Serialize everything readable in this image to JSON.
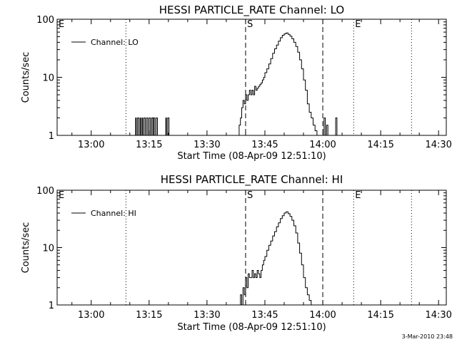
{
  "footer": {
    "timestamp": "3-Mar-2010 23:48"
  },
  "chart_data": [
    {
      "type": "line",
      "title": "HESSI PARTICLE_RATE Channel: LO",
      "xlabel": "Start Time (08-Apr-09 12:51:10)",
      "ylabel": "Counts/sec",
      "yscale": "log",
      "xlim": [
        "12:51:10",
        "14:32:00"
      ],
      "ylim": [
        1,
        100
      ],
      "xticks": [
        "13:00",
        "13:15",
        "13:30",
        "13:45",
        "14:00",
        "14:15",
        "14:30"
      ],
      "yticks": [
        "1",
        "10",
        "100"
      ],
      "legend": {
        "position": "top-left",
        "entries": [
          "Channel: LO"
        ]
      },
      "markers": [
        {
          "label": "E",
          "time": "12:51:10",
          "style": "dotted"
        },
        {
          "label": "",
          "time": "13:09:00",
          "style": "dotted"
        },
        {
          "label": "S",
          "time": "13:40:00",
          "style": "dashed"
        },
        {
          "label": "",
          "time": "14:00:00",
          "style": "dashed"
        },
        {
          "label": "E",
          "time": "14:08:00",
          "style": "dotted"
        },
        {
          "label": "",
          "time": "14:23:00",
          "style": "dotted"
        }
      ],
      "series": [
        {
          "name": "Channel: LO",
          "x": [
            "12:51:10",
            "13:11:00",
            "13:11:30",
            "13:11:40",
            "13:12:00",
            "13:12:20",
            "13:12:40",
            "13:12:50",
            "13:13:10",
            "13:13:20",
            "13:13:40",
            "13:14:00",
            "13:14:20",
            "13:14:40",
            "13:15:00",
            "13:15:20",
            "13:15:40",
            "13:16:00",
            "13:16:10",
            "13:16:30",
            "13:16:50",
            "13:17:10",
            "13:17:20",
            "13:19:00",
            "13:19:20",
            "13:19:30",
            "13:19:50",
            "13:20:10",
            "13:38:00",
            "13:38:20",
            "13:38:40",
            "13:39:00",
            "13:39:20",
            "13:39:40",
            "13:40:00",
            "13:40:20",
            "13:40:40",
            "13:41:00",
            "13:41:20",
            "13:41:40",
            "13:42:00",
            "13:42:20",
            "13:42:40",
            "13:43:00",
            "13:43:20",
            "13:43:40",
            "13:44:00",
            "13:44:20",
            "13:44:40",
            "13:45:00",
            "13:45:30",
            "13:46:00",
            "13:46:30",
            "13:47:00",
            "13:47:30",
            "13:48:00",
            "13:48:30",
            "13:49:00",
            "13:49:30",
            "13:50:00",
            "13:50:30",
            "13:51:00",
            "13:51:30",
            "13:52:00",
            "13:52:30",
            "13:53:00",
            "13:53:30",
            "13:54:00",
            "13:54:30",
            "13:55:00",
            "13:55:30",
            "13:56:00",
            "13:56:30",
            "13:57:00",
            "13:57:30",
            "13:58:00",
            "13:58:30",
            "13:59:00",
            "13:59:30",
            "14:00:00",
            "14:00:20",
            "14:00:40",
            "14:01:00",
            "14:01:20",
            "14:01:40",
            "14:02:00",
            "14:03:00",
            "14:03:20",
            "14:03:40",
            "14:04:00",
            "14:32:00"
          ],
          "y": [
            1,
            1,
            2,
            1,
            2,
            1,
            2,
            1,
            2,
            1,
            2,
            1,
            2,
            1,
            2,
            1,
            2,
            1,
            2,
            1,
            2,
            1,
            1,
            1,
            2,
            1,
            2,
            1,
            1,
            1.5,
            2,
            3,
            4,
            3.5,
            5,
            4,
            5,
            6,
            5,
            6,
            5,
            7,
            6,
            6.5,
            7,
            7.5,
            8,
            9,
            10,
            12,
            14,
            17,
            21,
            26,
            31,
            36,
            42,
            48,
            53,
            56,
            58,
            55,
            51,
            46,
            40,
            34,
            27,
            20,
            14,
            9,
            6,
            3.5,
            2.5,
            2,
            1.5,
            1.2,
            1,
            1,
            1,
            1,
            2,
            1,
            1.5,
            1,
            1,
            1,
            1,
            2,
            1,
            1,
            1
          ]
        }
      ]
    },
    {
      "type": "line",
      "title": "HESSI PARTICLE_RATE Channel: HI",
      "xlabel": "Start Time (08-Apr-09 12:51:10)",
      "ylabel": "Counts/sec",
      "yscale": "log",
      "xlim": [
        "12:51:10",
        "14:32:00"
      ],
      "ylim": [
        1,
        100
      ],
      "xticks": [
        "13:00",
        "13:15",
        "13:30",
        "13:45",
        "14:00",
        "14:15",
        "14:30"
      ],
      "yticks": [
        "1",
        "10",
        "100"
      ],
      "legend": {
        "position": "top-left",
        "entries": [
          "Channel: HI"
        ]
      },
      "markers": [
        {
          "label": "E",
          "time": "12:51:10",
          "style": "dotted"
        },
        {
          "label": "",
          "time": "13:09:00",
          "style": "dotted"
        },
        {
          "label": "S",
          "time": "13:40:00",
          "style": "dashed"
        },
        {
          "label": "",
          "time": "14:00:00",
          "style": "dashed"
        },
        {
          "label": "E",
          "time": "14:08:00",
          "style": "dotted"
        },
        {
          "label": "",
          "time": "14:23:00",
          "style": "dotted"
        }
      ],
      "series": [
        {
          "name": "Channel: HI",
          "x": [
            "13:38:20",
            "13:38:40",
            "13:39:00",
            "13:39:20",
            "13:39:40",
            "13:40:00",
            "13:40:20",
            "13:40:40",
            "13:41:00",
            "13:41:20",
            "13:41:40",
            "13:42:00",
            "13:42:20",
            "13:42:40",
            "13:43:00",
            "13:43:20",
            "13:43:40",
            "13:44:00",
            "13:44:20",
            "13:44:40",
            "13:45:00",
            "13:45:30",
            "13:46:00",
            "13:46:30",
            "13:47:00",
            "13:47:30",
            "13:48:00",
            "13:48:30",
            "13:49:00",
            "13:49:30",
            "13:50:00",
            "13:50:30",
            "13:51:00",
            "13:51:30",
            "13:52:00",
            "13:52:30",
            "13:53:00",
            "13:53:30",
            "13:54:00",
            "13:54:30",
            "13:55:00",
            "13:55:30",
            "13:56:00",
            "13:56:30",
            "13:57:00"
          ],
          "y": [
            1,
            1.5,
            1,
            2,
            1.5,
            3,
            2,
            3.5,
            3,
            3,
            4,
            3,
            3.5,
            3,
            4,
            3.5,
            3,
            4,
            5,
            6,
            7,
            9,
            11,
            13,
            16,
            19,
            23,
            27,
            32,
            36,
            40,
            42,
            39,
            35,
            30,
            24,
            18,
            12,
            8,
            5,
            3,
            2,
            1.5,
            1.2,
            1
          ]
        }
      ]
    }
  ]
}
